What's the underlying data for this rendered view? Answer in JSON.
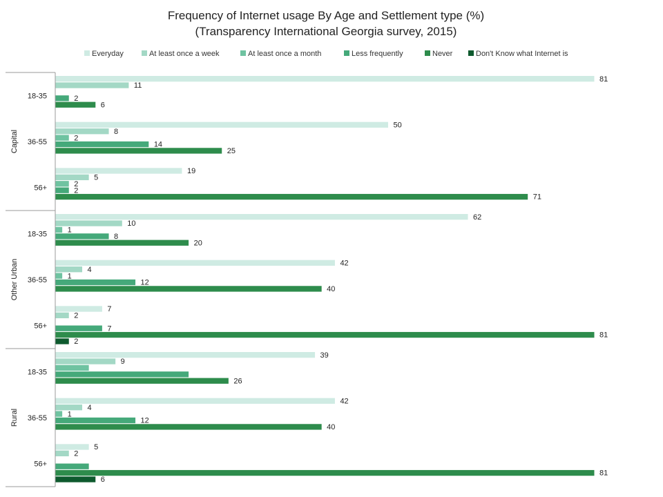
{
  "chart_data": {
    "type": "bar",
    "orientation": "horizontal",
    "title": "Frequency of Internet usage By Age and Settlement type (%)",
    "subtitle": "(Transparency International Georgia survey, 2015)",
    "xlim": [
      0,
      81
    ],
    "grid": false,
    "legend_position": "top",
    "series": [
      {
        "name": "Everyday",
        "color": "#cfebe3"
      },
      {
        "name": "At least once a week",
        "color": "#a3d8c5"
      },
      {
        "name": "At least once a month",
        "color": "#6fc3a1"
      },
      {
        "name": "Less frequently",
        "color": "#45a97a"
      },
      {
        "name": "Never",
        "color": "#2e8c4c"
      },
      {
        "name": "Don't Know what Internet is",
        "color": "#0e5a2e"
      }
    ],
    "groups": [
      {
        "settlement": "Capital",
        "ages": [
          {
            "age": "18-35",
            "values": [
              81,
              11,
              null,
              2,
              6,
              null
            ]
          },
          {
            "age": "36-55",
            "values": [
              50,
              8,
              2,
              14,
              25,
              null
            ]
          },
          {
            "age": "56+",
            "values": [
              19,
              5,
              2,
              2,
              71,
              null
            ]
          }
        ]
      },
      {
        "settlement": "Other Urban",
        "ages": [
          {
            "age": "18-35",
            "values": [
              62,
              10,
              1,
              8,
              20,
              null
            ]
          },
          {
            "age": "36-55",
            "values": [
              42,
              4,
              1,
              12,
              40,
              null
            ]
          },
          {
            "age": "56+",
            "values": [
              7,
              2,
              null,
              7,
              81,
              2
            ]
          }
        ]
      },
      {
        "settlement": "Rural",
        "ages": [
          {
            "age": "18-35",
            "values": [
              39,
              9,
              5,
              20,
              26,
              null
            ]
          },
          {
            "age": "36-55",
            "values": [
              42,
              4,
              1,
              12,
              40,
              null
            ]
          },
          {
            "age": "56+",
            "values": [
              5,
              2,
              null,
              5,
              81,
              6
            ]
          }
        ]
      }
    ],
    "hidden_labels": [
      [
        2,
        0,
        2
      ],
      [
        2,
        0,
        3
      ],
      [
        2,
        2,
        3
      ]
    ]
  }
}
